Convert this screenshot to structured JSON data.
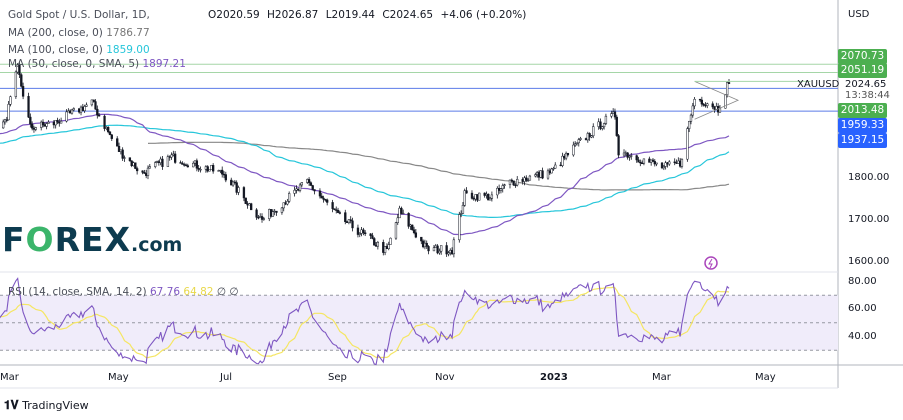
{
  "header": {
    "symbol_title": "Gold Spot / U.S. Dollar, 1D,",
    "open": "O2020.59",
    "high": "H2026.87",
    "low": "L2019.44",
    "close": "C2024.65",
    "change": "+4.06 (+0.20%)"
  },
  "indicators": [
    {
      "label": "MA (200, close, 0)",
      "value": "1786.77",
      "color": "#888888"
    },
    {
      "label": "MA (100, close, 0)",
      "value": "1859.00",
      "color": "#26c6da"
    },
    {
      "label": "MA (50, close, 0, SMA, 5)",
      "value": "1897.21",
      "color": "#7e57c2"
    }
  ],
  "rsi": {
    "label": "RSI (14, close, SMA, 14, 2)",
    "value": "67.76",
    "sma_value": "64.82",
    "extra1": "∅",
    "extra2": "∅",
    "line_color": "#7e57c2",
    "sma_color": "#f5e663"
  },
  "price_axis": {
    "currency": "USD",
    "ticks": [
      "1800.00",
      "1700.00",
      "1600.00"
    ]
  },
  "rsi_axis": {
    "ticks": [
      "80.00",
      "60.00",
      "40.00"
    ]
  },
  "price_tags": [
    {
      "value": "2070.73",
      "color": "#4caf50"
    },
    {
      "value": "2051.19",
      "color": "#4caf50"
    },
    {
      "value": "2013.48",
      "color": "#4caf50"
    },
    {
      "value": "1959.33",
      "color": "#2962ff"
    },
    {
      "value": "1937.15",
      "color": "#2962ff"
    }
  ],
  "last_price": {
    "symbol": "XAUUSD",
    "price": "2024.65",
    "countdown": "13:38:44"
  },
  "time_axis": [
    "Mar",
    "May",
    "Jul",
    "Sep",
    "Nov",
    "2023",
    "Mar",
    "May"
  ],
  "logo": {
    "text_f": "F",
    "text_o": "O",
    "text_rex": "REX",
    "text_com": ".com"
  },
  "footer": {
    "brand": "TradingView"
  },
  "colors": {
    "up": "#26a69a",
    "candle": "#131722",
    "rsi_band": "#f0ecfa",
    "green_line": "#a5d6a7",
    "blue_line": "#5b7be8"
  },
  "chart_data": {
    "type": "candlestick",
    "xlabel": "",
    "ylabel": "USD",
    "ylim": [
      1560,
      2110
    ],
    "rsi_ylim": [
      20,
      85
    ],
    "closes_keypoints": [
      [
        "2022-03-01",
        1930
      ],
      [
        "2022-03-08",
        2060
      ],
      [
        "2022-03-15",
        1920
      ],
      [
        "2022-03-28",
        1930
      ],
      [
        "2022-04-18",
        1980
      ],
      [
        "2022-05-02",
        1870
      ],
      [
        "2022-05-16",
        1810
      ],
      [
        "2022-06-01",
        1850
      ],
      [
        "2022-06-15",
        1830
      ],
      [
        "2022-06-30",
        1810
      ],
      [
        "2022-07-21",
        1700
      ],
      [
        "2022-08-15",
        1790
      ],
      [
        "2022-09-01",
        1710
      ],
      [
        "2022-09-15",
        1665
      ],
      [
        "2022-09-28",
        1625
      ],
      [
        "2022-10-05",
        1720
      ],
      [
        "2022-10-20",
        1630
      ],
      [
        "2022-11-03",
        1630
      ],
      [
        "2022-11-10",
        1760
      ],
      [
        "2022-11-25",
        1755
      ],
      [
        "2022-12-05",
        1790
      ],
      [
        "2022-12-28",
        1815
      ],
      [
        "2023-01-10",
        1875
      ],
      [
        "2023-01-26",
        1935
      ],
      [
        "2023-02-01",
        1950
      ],
      [
        "2023-02-03",
        1865
      ],
      [
        "2023-02-28",
        1825
      ],
      [
        "2023-03-09",
        1835
      ],
      [
        "2023-03-17",
        1990
      ],
      [
        "2023-03-24",
        1980
      ],
      [
        "2023-03-30",
        1965
      ],
      [
        "2023-04-04",
        2020
      ],
      [
        "2023-04-05",
        2024.65
      ]
    ],
    "horizontal_levels": [
      2070.73,
      2051.19,
      2013.48,
      1959.33
    ]
  }
}
